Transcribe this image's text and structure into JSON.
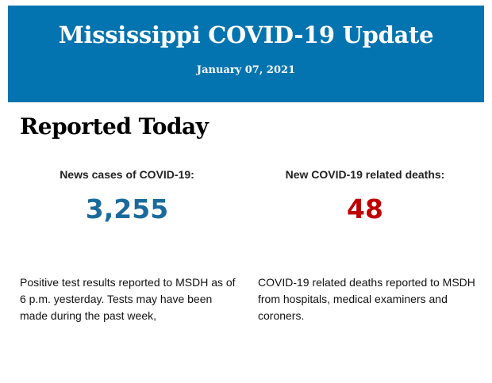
{
  "header": {
    "title": "Mississippi COVID-19 Update",
    "date": "January 07, 2021",
    "color": "#0474b0"
  },
  "section": {
    "heading": "Reported Today"
  },
  "stats": [
    {
      "label": "News cases of COVID-19:",
      "value": "3,255",
      "color": "#1b6a9c",
      "description": "Positive test results reported to MSDH as of 6 p.m. yesterday. Tests may have been made during the past week,"
    },
    {
      "label": "New COVID-19 related deaths:",
      "value": "48",
      "color": "#c00000",
      "description": "COVID-19 related deaths reported to MSDH from hospitals, medical examiners and coroners."
    }
  ]
}
